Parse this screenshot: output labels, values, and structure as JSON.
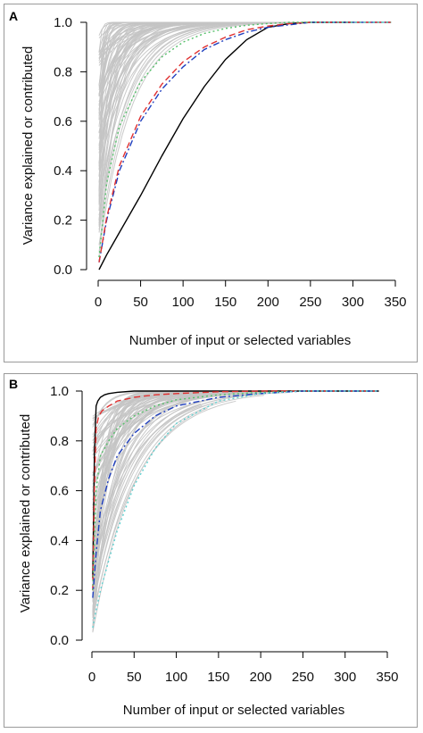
{
  "chart_data": [
    {
      "type": "line",
      "panel_label": "A",
      "xlabel": "Number of input or selected variables",
      "ylabel": "Variance explained or contributed",
      "xlim": [
        0,
        350
      ],
      "ylim": [
        0,
        1.0
      ],
      "xticks": [
        "0",
        "50",
        "100",
        "150",
        "200",
        "250",
        "300",
        "350"
      ],
      "yticks": [
        "0.0",
        "0.2",
        "0.4",
        "0.6",
        "0.8",
        "1.0"
      ],
      "grid": false,
      "background_curves": {
        "color": "#c4c4c4",
        "description": "many grey curves saturating near 1.0 quickly"
      },
      "series": [
        {
          "color": "#000000",
          "style": "solid",
          "x": [
            1,
            10,
            25,
            50,
            75,
            100,
            125,
            150,
            175,
            200,
            225,
            250,
            275,
            300
          ],
          "y": [
            0.0,
            0.06,
            0.15,
            0.3,
            0.46,
            0.61,
            0.74,
            0.85,
            0.93,
            0.98,
            0.995,
            1.0,
            1.0,
            1.0
          ]
        },
        {
          "color": "#1f3fbf",
          "style": "dashdot",
          "x": [
            1,
            10,
            25,
            50,
            75,
            100,
            125,
            150,
            175,
            200,
            225,
            250,
            300,
            345
          ],
          "y": [
            0.03,
            0.2,
            0.4,
            0.6,
            0.73,
            0.82,
            0.89,
            0.93,
            0.96,
            0.98,
            0.99,
            1.0,
            1.0,
            1.0
          ]
        },
        {
          "color": "#e03030",
          "style": "dashed",
          "x": [
            1,
            10,
            25,
            50,
            75,
            100,
            125,
            150,
            175,
            200,
            225,
            250,
            300,
            345
          ],
          "y": [
            0.03,
            0.21,
            0.42,
            0.62,
            0.75,
            0.84,
            0.9,
            0.94,
            0.97,
            0.985,
            0.995,
            1.0,
            1.0,
            1.0
          ]
        },
        {
          "color": "#55c06a",
          "style": "dotted",
          "x": [
            1,
            10,
            25,
            50,
            75,
            100,
            125,
            150,
            175,
            200,
            225,
            250,
            300,
            345
          ],
          "y": [
            0.05,
            0.35,
            0.58,
            0.76,
            0.86,
            0.92,
            0.955,
            0.975,
            0.988,
            0.995,
            1.0,
            1.0,
            1.0,
            1.0
          ]
        },
        {
          "color": "#5fd0d0",
          "style": "dotted",
          "x": [
            250,
            300,
            345
          ],
          "y": [
            1.0,
            1.0,
            1.0
          ]
        }
      ]
    },
    {
      "type": "line",
      "panel_label": "B",
      "xlabel": "Number of input or selected variables",
      "ylabel": "Variance explained or contributed",
      "xlim": [
        0,
        350
      ],
      "ylim": [
        0,
        1.0
      ],
      "xticks": [
        "0",
        "50",
        "100",
        "150",
        "200",
        "250",
        "300",
        "350"
      ],
      "yticks": [
        "0.0",
        "0.2",
        "0.4",
        "0.6",
        "0.8",
        "1.0"
      ],
      "grid": false,
      "background_curves": {
        "color": "#c4c4c4",
        "description": "many grey curves between the fast and slow bounds"
      },
      "series": [
        {
          "color": "#000000",
          "style": "solid",
          "x": [
            1,
            3,
            5,
            7,
            10,
            15,
            20,
            30,
            50,
            100,
            200,
            340
          ],
          "y": [
            0.25,
            0.75,
            0.94,
            0.96,
            0.975,
            0.985,
            0.99,
            0.995,
            1.0,
            1.0,
            1.0,
            1.0
          ]
        },
        {
          "color": "#e03030",
          "style": "dashed",
          "x": [
            1,
            3,
            5,
            8,
            12,
            20,
            30,
            50,
            75,
            100,
            150,
            200,
            340
          ],
          "y": [
            0.2,
            0.6,
            0.85,
            0.9,
            0.92,
            0.94,
            0.96,
            0.975,
            0.985,
            0.99,
            0.997,
            1.0,
            1.0
          ]
        },
        {
          "color": "#55c06a",
          "style": "dotted",
          "x": [
            1,
            5,
            10,
            20,
            30,
            50,
            75,
            100,
            150,
            200,
            250,
            340
          ],
          "y": [
            0.2,
            0.6,
            0.74,
            0.8,
            0.85,
            0.9,
            0.94,
            0.965,
            0.985,
            0.995,
            1.0,
            1.0
          ]
        },
        {
          "color": "#1f3fbf",
          "style": "dashdot",
          "x": [
            1,
            5,
            10,
            20,
            30,
            50,
            75,
            100,
            150,
            200,
            250,
            340
          ],
          "y": [
            0.17,
            0.35,
            0.52,
            0.65,
            0.74,
            0.83,
            0.9,
            0.94,
            0.975,
            0.99,
            1.0,
            1.0
          ]
        },
        {
          "color": "#5fd0d0",
          "style": "dotted",
          "x": [
            1,
            5,
            10,
            20,
            30,
            50,
            75,
            100,
            150,
            200,
            250,
            340
          ],
          "y": [
            0.05,
            0.12,
            0.2,
            0.32,
            0.44,
            0.62,
            0.77,
            0.87,
            0.96,
            0.99,
            1.0,
            1.0
          ]
        }
      ]
    }
  ]
}
